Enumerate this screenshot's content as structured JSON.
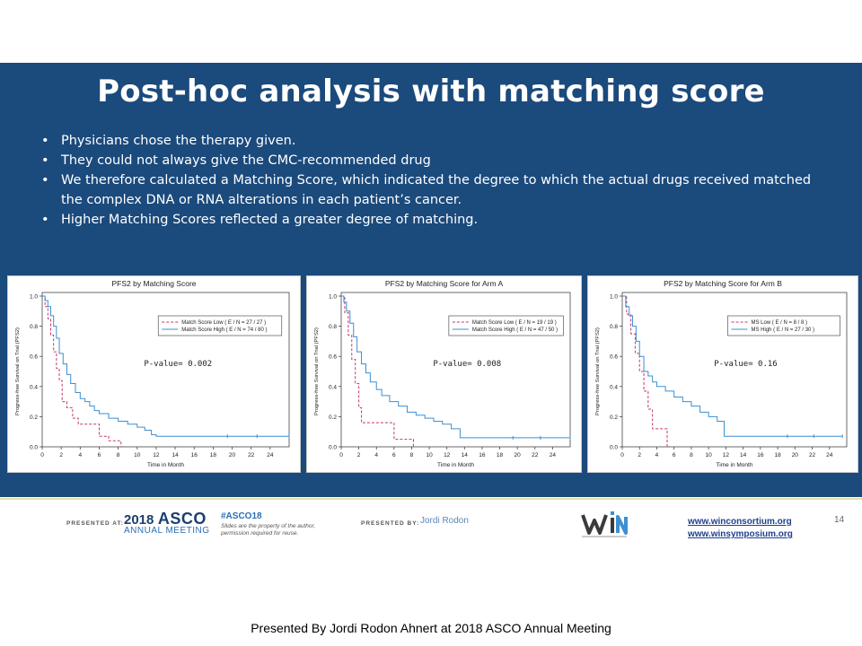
{
  "slide": {
    "title": "Post-hoc analysis with matching score",
    "bullets": [
      "Physicians chose the therapy given.",
      "They could not always give the CMC-recommended drug",
      "We therefore calculated a Matching Score, which indicated the degree to which the actual drugs received matched the complex DNA or RNA alterations in each patient’s cancer.",
      "Higher Matching Scores reflected a greater degree of matching."
    ]
  },
  "footer": {
    "presented_at_label": "PRESENTED AT:",
    "asco_year": "2018",
    "asco_word": "ASCO",
    "asco_subtitle": "ANNUAL MEETING",
    "hashtag": "#ASCO18",
    "disclaimer_line1": "Slides are the property of the author,",
    "disclaimer_line2": "permission required for reuse.",
    "presented_by_label": "PRESENTED BY:",
    "presenter": "Jordi Rodon",
    "win_logo_text": "WIN",
    "link1": "www.winconsortium.org",
    "link2": "www.winsymposium.org",
    "page_number": "14"
  },
  "caption": "Presented By Jordi Rodon Ahnert at 2018 ASCO Annual Meeting",
  "colors": {
    "panel": "#1b4a7c",
    "low_series": "#c2386b",
    "high_series": "#3d8fd1"
  },
  "chart_data": [
    {
      "type": "line",
      "title": "PFS2 by Matching Score",
      "xlabel": "Time in Month",
      "ylabel": "Progress-free Survival on Trial (PFS2)",
      "xlim": [
        0,
        26
      ],
      "ylim": [
        0,
        1.0
      ],
      "xticks": [
        0,
        2,
        4,
        6,
        8,
        10,
        12,
        14,
        16,
        18,
        20,
        22,
        24
      ],
      "yticks": [
        0.0,
        0.2,
        0.4,
        0.6,
        0.8,
        1.0
      ],
      "legend_placement": "top-right",
      "annotation": "P-value= 0.002",
      "series": [
        {
          "name": "Match Score Low  ( E / N = 27 / 27 )",
          "style": "dashed",
          "x": [
            0,
            0.3,
            0.6,
            0.9,
            1.2,
            1.5,
            1.8,
            2.1,
            2.6,
            3.2,
            3.8,
            4.3,
            6.0,
            7.0,
            8.0,
            8.3
          ],
          "y": [
            1.0,
            0.93,
            0.85,
            0.74,
            0.63,
            0.52,
            0.44,
            0.3,
            0.26,
            0.19,
            0.15,
            0.15,
            0.07,
            0.04,
            0.04,
            0.0
          ]
        },
        {
          "name": "Match Score High  ( E / N = 74 / 80 )",
          "x": [
            0,
            0.3,
            0.6,
            0.9,
            1.2,
            1.5,
            1.8,
            2.2,
            2.6,
            3.0,
            3.5,
            4.0,
            4.5,
            5.0,
            5.5,
            6.0,
            7.0,
            8.0,
            9.0,
            10.0,
            10.8,
            11.5,
            12.0,
            24.0,
            26.0
          ],
          "y": [
            1.0,
            0.97,
            0.93,
            0.87,
            0.8,
            0.72,
            0.62,
            0.55,
            0.48,
            0.42,
            0.36,
            0.32,
            0.3,
            0.27,
            0.24,
            0.22,
            0.19,
            0.17,
            0.15,
            0.13,
            0.11,
            0.08,
            0.07,
            0.07,
            0.07
          ]
        }
      ]
    },
    {
      "type": "line",
      "title": "PFS2 by Matching Score for Arm A",
      "xlabel": "Time in Month",
      "ylabel": "Progress-free Survival on Trial (PFS2)",
      "xlim": [
        0,
        26
      ],
      "ylim": [
        0,
        1.0
      ],
      "xticks": [
        0,
        2,
        4,
        6,
        8,
        10,
        12,
        14,
        16,
        18,
        20,
        22,
        24
      ],
      "yticks": [
        0.0,
        0.2,
        0.4,
        0.6,
        0.8,
        1.0
      ],
      "legend_placement": "top-right",
      "annotation": "P-value= 0.008",
      "series": [
        {
          "name": "Match Score Low  ( E / N = 19 / 19 )",
          "style": "dashed",
          "x": [
            0,
            0.4,
            0.8,
            1.2,
            1.6,
            2.0,
            2.3,
            3.0,
            6.0,
            6.5,
            8.0,
            8.2
          ],
          "y": [
            1.0,
            0.89,
            0.74,
            0.58,
            0.42,
            0.26,
            0.16,
            0.16,
            0.05,
            0.05,
            0.05,
            0.0
          ]
        },
        {
          "name": "Match Score High  ( E / N = 47 / 50 )",
          "x": [
            0,
            0.3,
            0.6,
            1.0,
            1.4,
            1.8,
            2.3,
            2.8,
            3.3,
            4.0,
            4.6,
            5.5,
            6.5,
            7.5,
            8.5,
            9.5,
            10.5,
            11.5,
            12.5,
            13.5,
            24.0,
            26.0
          ],
          "y": [
            1.0,
            0.96,
            0.9,
            0.82,
            0.73,
            0.63,
            0.55,
            0.49,
            0.43,
            0.38,
            0.34,
            0.3,
            0.27,
            0.23,
            0.21,
            0.19,
            0.17,
            0.15,
            0.12,
            0.06,
            0.06,
            0.06
          ]
        }
      ]
    },
    {
      "type": "line",
      "title": "PFS2 by Matching Score for Arm B",
      "xlabel": "Time in Month",
      "ylabel": "Progress-free Survival on Trial (PFS2)",
      "xlim": [
        0,
        26
      ],
      "ylim": [
        0,
        1.0
      ],
      "xticks": [
        0,
        2,
        4,
        6,
        8,
        10,
        12,
        14,
        16,
        18,
        20,
        22,
        24
      ],
      "yticks": [
        0.0,
        0.2,
        0.4,
        0.6,
        0.8,
        1.0
      ],
      "legend_placement": "top-right",
      "annotation": "P-value= 0.16",
      "series": [
        {
          "name": "MS Low  ( E / N = 8 / 8 )",
          "style": "dashed",
          "x": [
            0,
            0.5,
            1.0,
            1.5,
            2.0,
            2.5,
            3.0,
            3.5,
            4.0,
            5.0,
            5.2
          ],
          "y": [
            1.0,
            0.88,
            0.75,
            0.62,
            0.5,
            0.37,
            0.25,
            0.12,
            0.12,
            0.12,
            0.0
          ]
        },
        {
          "name": "MS High  ( E / N = 27 / 30 )",
          "x": [
            0,
            0.4,
            0.8,
            1.2,
            1.6,
            2.0,
            2.5,
            3.0,
            3.5,
            4.0,
            5.0,
            6.0,
            7.0,
            8.0,
            9.0,
            10.0,
            11.0,
            11.8,
            24.0,
            25.5
          ],
          "y": [
            1.0,
            0.93,
            0.87,
            0.8,
            0.7,
            0.6,
            0.5,
            0.47,
            0.43,
            0.4,
            0.37,
            0.33,
            0.3,
            0.27,
            0.23,
            0.2,
            0.17,
            0.07,
            0.07,
            0.07
          ]
        }
      ]
    }
  ]
}
